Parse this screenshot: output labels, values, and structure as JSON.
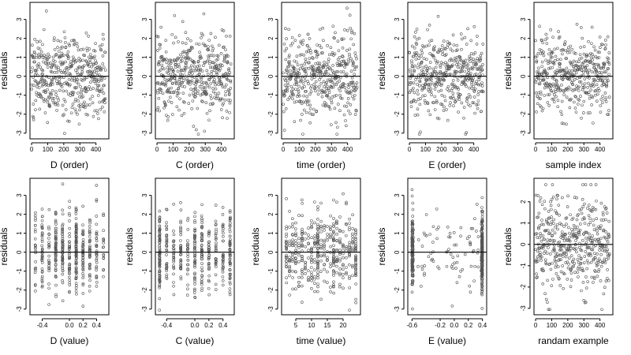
{
  "chart_data": [
    {
      "type": "scatter",
      "xlabel": "D (order)",
      "ylabel": "residuals",
      "xlim": [
        -10,
        480
      ],
      "ylim": [
        -3.3,
        3.9
      ],
      "xticks": [
        0,
        100,
        200,
        300,
        400
      ],
      "xtick_labels": [
        "0",
        "100",
        "200",
        "300",
        "400"
      ],
      "yticks": [
        -3,
        -2,
        -1,
        0,
        1,
        2,
        3
      ],
      "ytick_labels": [
        "-3",
        "-2",
        "-1",
        "0",
        "1",
        "2",
        "3"
      ],
      "reference_line_y": 0,
      "x_kind": "index",
      "n_points": 460,
      "seed": 101
    },
    {
      "type": "scatter",
      "xlabel": "C (order)",
      "ylabel": "residuals",
      "xlim": [
        -10,
        480
      ],
      "ylim": [
        -3.3,
        3.9
      ],
      "xticks": [
        0,
        100,
        200,
        300,
        400
      ],
      "xtick_labels": [
        "0",
        "100",
        "200",
        "300",
        "400"
      ],
      "yticks": [
        -3,
        -2,
        -1,
        0,
        1,
        2,
        3
      ],
      "ytick_labels": [
        "-3",
        "-2",
        "-1",
        "0",
        "1",
        "2",
        "3"
      ],
      "reference_line_y": 0,
      "x_kind": "index",
      "n_points": 460,
      "seed": 202
    },
    {
      "type": "scatter",
      "xlabel": "time (order)",
      "ylabel": "residuals",
      "xlim": [
        -10,
        480
      ],
      "ylim": [
        -3.3,
        3.9
      ],
      "xticks": [
        0,
        100,
        200,
        300,
        400
      ],
      "xtick_labels": [
        "0",
        "100",
        "200",
        "300",
        "400"
      ],
      "yticks": [
        -3,
        -2,
        -1,
        0,
        1,
        2,
        3
      ],
      "ytick_labels": [
        "-3",
        "-2",
        "-1",
        "0",
        "1",
        "2",
        "3"
      ],
      "reference_line_y": 0,
      "x_kind": "index",
      "n_points": 460,
      "seed": 303
    },
    {
      "type": "scatter",
      "xlabel": "E (order)",
      "ylabel": "residuals",
      "xlim": [
        -10,
        480
      ],
      "ylim": [
        -3.3,
        3.9
      ],
      "xticks": [
        0,
        100,
        200,
        300,
        400
      ],
      "xtick_labels": [
        "0",
        "100",
        "200",
        "300",
        "400"
      ],
      "yticks": [
        -3,
        -2,
        -1,
        0,
        1,
        2,
        3
      ],
      "ytick_labels": [
        "-3",
        "-2",
        "-1",
        "0",
        "1",
        "2",
        "3"
      ],
      "reference_line_y": 0,
      "x_kind": "index",
      "n_points": 460,
      "seed": 404
    },
    {
      "type": "scatter",
      "xlabel": "sample index",
      "ylabel": "residuals",
      "xlim": [
        -10,
        480
      ],
      "ylim": [
        -3.3,
        3.9
      ],
      "xticks": [
        0,
        100,
        200,
        300,
        400
      ],
      "xtick_labels": [
        "0",
        "100",
        "200",
        "300",
        "400"
      ],
      "yticks": [
        -3,
        -2,
        -1,
        0,
        1,
        2,
        3
      ],
      "ytick_labels": [
        "-3",
        "-2",
        "-1",
        "0",
        "1",
        "2",
        "3"
      ],
      "reference_line_y": 0,
      "x_kind": "index",
      "n_points": 460,
      "seed": 505
    },
    {
      "type": "scatter",
      "xlabel": "D (value)",
      "ylabel": "residuals",
      "xlim": [
        -0.58,
        0.58
      ],
      "ylim": [
        -3.3,
        3.9
      ],
      "xticks": [
        -0.4,
        0,
        0.2,
        0.4
      ],
      "xtick_labels": [
        "-0.4",
        "0.0",
        "0.2",
        "0.4"
      ],
      "yticks": [
        -3,
        -2,
        -1,
        0,
        1,
        2,
        3
      ],
      "ytick_labels": [
        "-3",
        "-2",
        "-1",
        "0",
        "1",
        "2",
        "3"
      ],
      "reference_line_y": 0,
      "x_kind": "grid",
      "x_levels": [
        -0.5,
        -0.4,
        -0.3,
        -0.2,
        -0.1,
        0,
        0.1,
        0.2,
        0.3,
        0.4,
        0.5
      ],
      "level_weights": [
        1,
        2,
        2,
        3,
        3,
        2,
        4,
        3,
        2,
        2,
        1
      ],
      "x_jitter": 0.004,
      "n_points": 460,
      "seed": 606
    },
    {
      "type": "scatter",
      "xlabel": "C (value)",
      "ylabel": "residuals",
      "xlim": [
        -0.56,
        0.56
      ],
      "ylim": [
        -3.3,
        3.9
      ],
      "xticks": [
        -0.4,
        0,
        0.2,
        0.4
      ],
      "xtick_labels": [
        "-0.4",
        "0.0",
        "0.2",
        "0.4"
      ],
      "yticks": [
        -3,
        -2,
        -1,
        0,
        1,
        2,
        3
      ],
      "ytick_labels": [
        "-3",
        "-2",
        "-1",
        "0",
        "1",
        "2",
        "3"
      ],
      "reference_line_y": 0,
      "x_kind": "grid",
      "x_levels": [
        -0.5,
        -0.4,
        -0.3,
        -0.2,
        -0.1,
        0,
        0.1,
        0.2,
        0.3,
        0.4,
        0.5
      ],
      "level_weights": [
        4,
        2,
        2,
        2,
        2,
        3,
        3,
        2,
        2,
        2,
        4
      ],
      "x_jitter": 0.004,
      "n_points": 460,
      "seed": 707
    },
    {
      "type": "scatter",
      "xlabel": "time (value)",
      "ylabel": "residuals",
      "xlim": [
        0.5,
        25.5
      ],
      "ylim": [
        -3.3,
        3.9
      ],
      "xticks": [
        5,
        10,
        15,
        20
      ],
      "xtick_labels": [
        "5",
        "10",
        "15",
        "20"
      ],
      "yticks": [
        -3,
        -2,
        -1,
        0,
        1,
        2,
        3
      ],
      "ytick_labels": [
        "-3",
        "-2",
        "-1",
        "0",
        "1",
        "2",
        "3"
      ],
      "reference_line_y": 0,
      "x_kind": "grid",
      "x_levels": [
        2,
        3,
        4,
        5,
        6,
        7,
        8,
        9,
        10,
        11,
        12,
        13,
        14,
        15,
        16,
        17,
        18,
        19,
        20,
        21,
        22,
        23,
        24
      ],
      "level_weights": [
        1,
        1,
        1,
        1,
        1,
        2,
        1,
        1,
        1,
        1,
        3,
        1,
        1,
        1,
        1,
        2,
        1,
        1,
        1,
        1,
        1,
        1,
        2
      ],
      "x_jitter": 0.05,
      "n_points": 460,
      "seed": 808
    },
    {
      "type": "scatter",
      "xlabel": "E (value)",
      "ylabel": "residuals",
      "xlim": [
        -0.66,
        0.46
      ],
      "ylim": [
        -3.3,
        3.9
      ],
      "xticks": [
        -0.6,
        -0.2,
        0,
        0.2,
        0.4
      ],
      "xtick_labels": [
        "-0.6",
        "-0.2",
        "0.0",
        "0.2",
        "0.4"
      ],
      "yticks": [
        -3,
        -2,
        -1,
        0,
        1,
        2,
        3
      ],
      "ytick_labels": [
        "-3",
        "-2",
        "-1",
        "0",
        "1",
        "2",
        "3"
      ],
      "reference_line_y": 0,
      "x_kind": "bimodal",
      "x_levels": [
        -0.6,
        0.4
      ],
      "n_points": 460,
      "seed": 909
    },
    {
      "type": "scatter",
      "xlabel": "randam example",
      "ylabel": "residuals",
      "xlim": [
        -10,
        480
      ],
      "ylim": [
        -3.3,
        3.1
      ],
      "xticks": [
        0,
        100,
        200,
        300,
        400
      ],
      "xtick_labels": [
        "0",
        "100",
        "200",
        "300",
        "400"
      ],
      "yticks": [
        -3,
        -2,
        -1,
        0,
        1,
        2
      ],
      "ytick_labels": [
        "-3",
        "-2",
        "-1",
        "0",
        "1",
        "2"
      ],
      "reference_line_y": 0,
      "x_kind": "index",
      "n_points": 460,
      "seed": 1010
    }
  ],
  "colors": {
    "points": "#555555",
    "axes": "#000000"
  }
}
